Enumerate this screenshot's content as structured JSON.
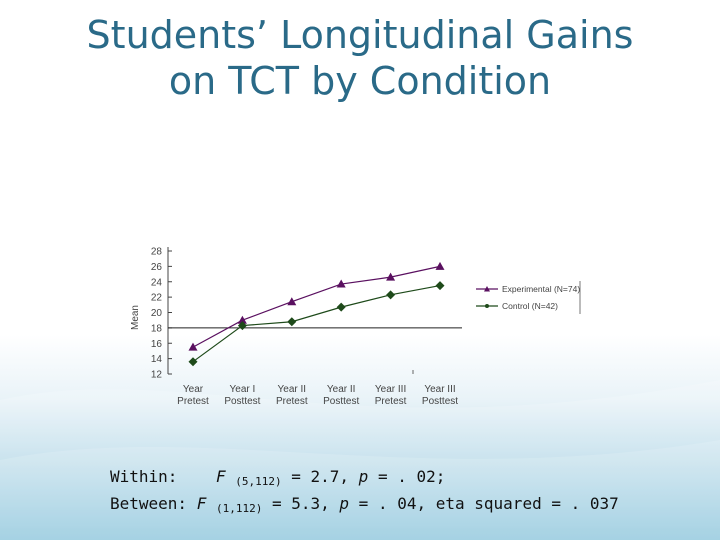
{
  "slide": {
    "title_line1": "Students’ Longitudinal Gains",
    "title_line2": "on TCT by Condition"
  },
  "chart_data": {
    "type": "line",
    "title": "",
    "ylabel": "Mean",
    "xlabel": "",
    "categories": [
      [
        "Year",
        "Pretest"
      ],
      [
        "Year I",
        "Posttest"
      ],
      [
        "Year II",
        "Pretest"
      ],
      [
        "Year II",
        "Posttest"
      ],
      [
        "Year III",
        "Pretest"
      ],
      [
        "Year III",
        "Posttest"
      ]
    ],
    "yticks": [
      12,
      14,
      16,
      18,
      20,
      22,
      24,
      26,
      28
    ],
    "ylim": [
      12,
      28
    ],
    "reference_line": 18,
    "grid": false,
    "legend_position": "right",
    "series": [
      {
        "name": "Experimental (N=74)",
        "marker": "triangle",
        "color": "#5a1060",
        "values": [
          15.5,
          19.0,
          21.4,
          23.7,
          24.6,
          26.0
        ]
      },
      {
        "name": "Control (N=42)",
        "marker": "diamond",
        "color": "#1e4a1a",
        "values": [
          13.6,
          18.3,
          18.8,
          20.7,
          22.3,
          23.5
        ]
      }
    ]
  },
  "stats": {
    "within_label": "Within:",
    "within_F": "F",
    "within_df": "(5,112)",
    "within_rest": " = 2.7, ",
    "within_p": "p",
    "within_tail": " = . 02;",
    "between_label": "Between: ",
    "between_F": "F",
    "between_df": "(1,112)",
    "between_rest": " = 5.3, ",
    "between_p": "p",
    "between_tail": " = . 04, eta squared = . 037"
  }
}
